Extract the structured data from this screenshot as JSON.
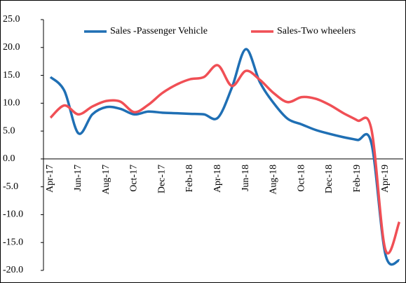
{
  "chart_data": {
    "type": "line",
    "categories": [
      "Apr-17",
      null,
      "Jun-17",
      null,
      "Aug-17",
      null,
      "Oct-17",
      null,
      "Dec-17",
      null,
      "Feb-18",
      null,
      "Apr-18",
      null,
      "Jun-18",
      null,
      "Aug-18",
      null,
      "Oct-18",
      null,
      "Dec-18",
      null,
      "Feb-19",
      null,
      "Apr-19",
      null
    ],
    "series": [
      {
        "name": "Sales -Passenger Vehicle",
        "color": "#1f6fb4",
        "values": [
          14.7,
          12.2,
          4.6,
          8.0,
          9.3,
          9.0,
          8.0,
          8.5,
          8.3,
          8.2,
          8.1,
          8.0,
          7.4,
          12.8,
          19.7,
          13.8,
          10.0,
          7.2,
          6.2,
          5.2,
          4.5,
          3.9,
          3.4,
          2.8,
          -17.1,
          -18.2
        ]
      },
      {
        "name": "Sales-Two wheelers",
        "color": "#f04f55",
        "values": [
          7.4,
          9.6,
          8.0,
          9.4,
          10.4,
          10.3,
          8.4,
          9.7,
          11.8,
          13.3,
          14.3,
          14.7,
          16.8,
          13.1,
          15.8,
          14.2,
          11.8,
          10.2,
          11.1,
          10.8,
          9.7,
          8.2,
          6.9,
          5.3,
          -16.3,
          -11.3
        ]
      }
    ],
    "ylim": [
      -20,
      25
    ],
    "yticks": [
      {
        "value": 25,
        "label": "25.0"
      },
      {
        "value": 20,
        "label": "20.0"
      },
      {
        "value": 15,
        "label": "15.0"
      },
      {
        "value": 10,
        "label": "10.0"
      },
      {
        "value": 5,
        "label": "5.0"
      },
      {
        "value": 0,
        "label": "0.0"
      },
      {
        "value": -5,
        "label": "-5.0"
      },
      {
        "value": -10,
        "label": "-10.0"
      },
      {
        "value": -15,
        "label": "-15.0"
      },
      {
        "value": -20,
        "label": "-20.0"
      }
    ],
    "legend": "top"
  }
}
